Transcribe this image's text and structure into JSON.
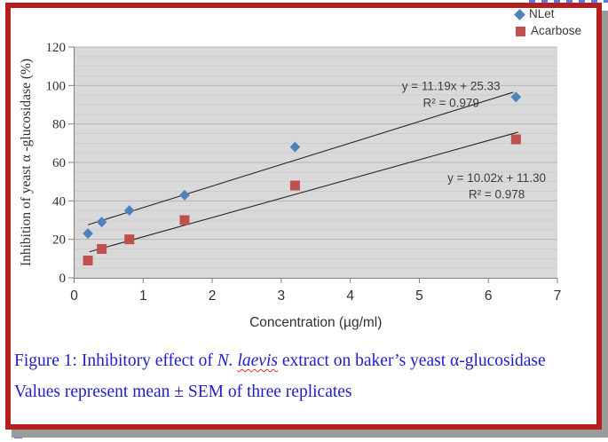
{
  "figure": {
    "caption": {
      "prefix": "Figure 1: Inhibitory effect of ",
      "species_genus": "N. ",
      "species_epithet": "laevis",
      "suffix": " extract on baker’s yeast α-",
      "wrap_word": "glucosidase",
      "note": "Values represent mean ± SEM of three replicates"
    },
    "colors": {
      "frame_border": "#b41f1f",
      "frame_shadow": "#9b9b9b",
      "caption_text": "#1e1ecb",
      "spellcheck_underline": "#e03030",
      "plot_background": "#d9d9d9",
      "gridline_minor": "#cdcdcd",
      "gridline_major": "#b5b5b5",
      "axis_line": "#7f7f7f",
      "tick_text": "#303030",
      "annotation_text": "#3d3d3d",
      "trendline": "#262626"
    }
  },
  "chart_data": {
    "type": "scatter",
    "title": "",
    "xlabel": "Concentration (µg/ml)",
    "ylabel": "Inhibition of yeast α -glucosidase (%)",
    "xlim": [
      0,
      7
    ],
    "ylim": [
      0,
      120
    ],
    "x_ticks": [
      0,
      1,
      2,
      3,
      4,
      5,
      6,
      7
    ],
    "y_ticks": [
      0,
      20,
      40,
      60,
      80,
      100,
      120
    ],
    "grid": "horizontal only: minor every 5, major every 20",
    "legend_position": "top-right",
    "x": [
      0.2,
      0.4,
      0.8,
      1.6,
      3.2,
      6.4
    ],
    "series": [
      {
        "name": "NLet",
        "marker": "diamond",
        "color": "#4F81BD",
        "values": [
          23,
          29,
          35,
          43,
          68,
          94
        ],
        "trendline": {
          "slope": 11.19,
          "intercept": 25.33,
          "x_start": 0.2,
          "x_end": 6.36,
          "equation": "y = 11.19x + 25.33",
          "r_squared": "R² = 0.979",
          "label_anchor": {
            "x": 5.46,
            "y": 99.7
          },
          "r2_anchor": {
            "x": 5.46,
            "y": 91.0
          }
        }
      },
      {
        "name": "Acarbose",
        "marker": "square",
        "color": "#C0504D",
        "values": [
          9,
          15,
          20,
          30,
          48,
          72
        ],
        "trendline": {
          "slope": 10.02,
          "intercept": 11.3,
          "x_start": 0.22,
          "x_end": 6.43,
          "equation": "y = 10.02x + 11.30",
          "r_squared": "R² = 0.978",
          "label_anchor": {
            "x": 6.12,
            "y": 52.0
          },
          "r2_anchor": {
            "x": 6.12,
            "y": 43.5
          }
        }
      }
    ]
  }
}
